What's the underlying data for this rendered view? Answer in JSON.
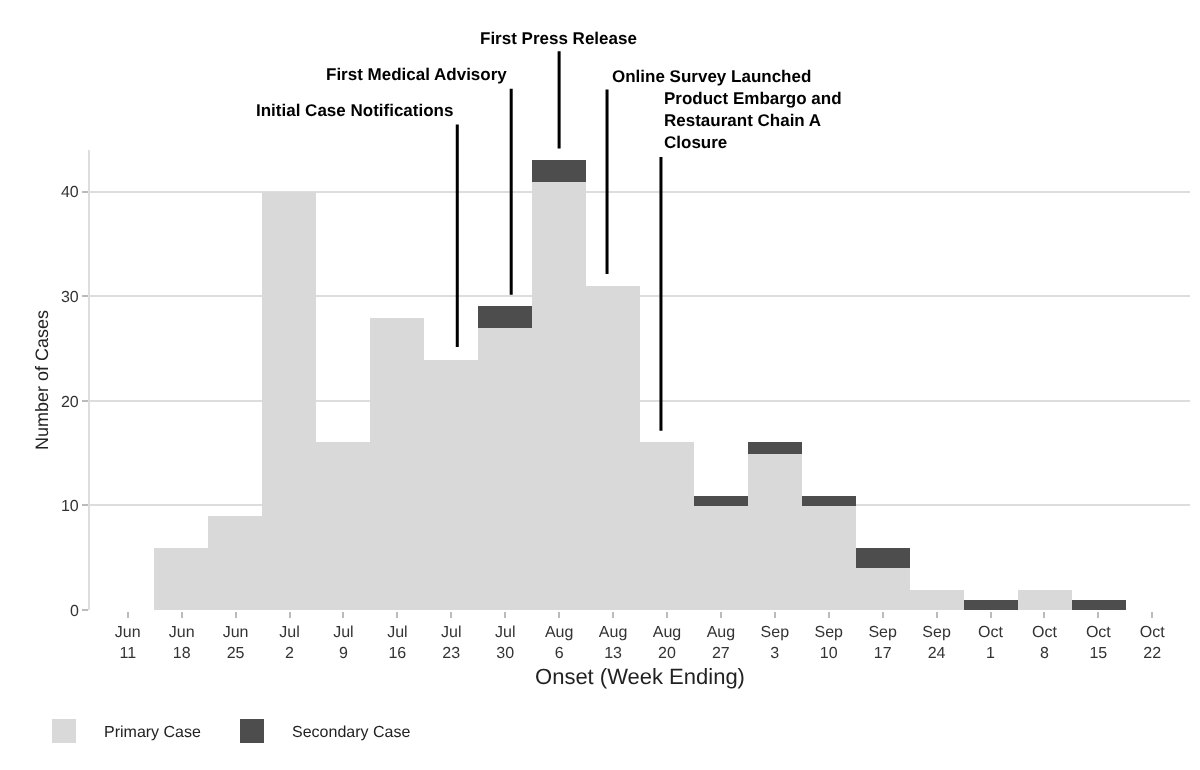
{
  "chart_data": {
    "type": "bar",
    "stacked": true,
    "categories": [
      "Jun 11",
      "Jun 18",
      "Jun 25",
      "Jul 2",
      "Jul 9",
      "Jul 16",
      "Jul 23",
      "Jul 30",
      "Aug 6",
      "Aug 13",
      "Aug 20",
      "Aug 27",
      "Sep 3",
      "Sep 10",
      "Sep 17",
      "Sep 24",
      "Oct 1",
      "Oct 8",
      "Oct 15",
      "Oct 22"
    ],
    "series": [
      {
        "name": "Primary Case",
        "color": "#d9d9d9",
        "values": [
          0,
          6,
          9,
          40,
          16,
          28,
          24,
          27,
          41,
          31,
          16,
          10,
          15,
          10,
          4,
          2,
          0,
          2,
          0,
          0
        ]
      },
      {
        "name": "Secondary Case",
        "color": "#4d4d4d",
        "values": [
          0,
          0,
          0,
          0,
          0,
          0,
          0,
          2,
          2,
          0,
          0,
          1,
          1,
          1,
          2,
          0,
          1,
          0,
          1,
          0
        ]
      }
    ],
    "xlabel": "Onset (Week Ending)",
    "ylabel": "Number of Cases",
    "ylim": [
      0,
      44
    ],
    "yticks": [
      0,
      10,
      20,
      30,
      40
    ],
    "grid": "y",
    "legend": "bottom left",
    "annotations": [
      {
        "text": "Initial Case Notifications",
        "x": "Jul 23",
        "y": 24
      },
      {
        "text": "First Medical Advisory",
        "x": "Jul 30",
        "y": 29
      },
      {
        "text": "First Press Release",
        "x": "Aug 6",
        "y": 43
      },
      {
        "text": "Online Survey Launched",
        "x": "Aug 13",
        "y": 31
      },
      {
        "text": "Product Embargo and\nRestaurant Chain A\nClosure",
        "x": "Aug 20",
        "y": 16
      }
    ]
  }
}
